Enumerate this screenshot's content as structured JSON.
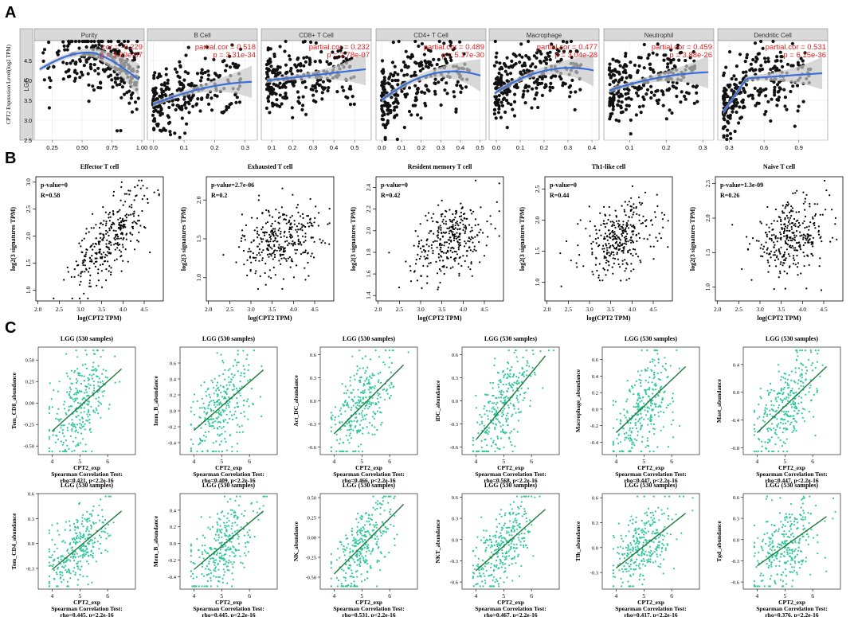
{
  "panels": {
    "a": "A",
    "b": "B",
    "c": "C"
  },
  "panel_a": {
    "ylabel": "CPT2 Expression Level(log2 TPM)",
    "cohort": "LGG",
    "yticks": [
      "2.5",
      "3.0",
      "3.5",
      "4.0",
      "4.5"
    ]
  },
  "panel_b": {
    "ylabel": "log2(3 signatures TPM)",
    "xlabel": "log(CPT2 TPM)"
  },
  "panel_c": {
    "title": "LGG (530 samples)",
    "xlabel": "CPT2_exp",
    "test": "Spearman Correlation Test:"
  },
  "chart_data": [
    {
      "type": "scatter",
      "panel": "A",
      "title": "Purity",
      "annot_label": "cor",
      "annot_value": "-0.229",
      "annot_p": "3.99e-07",
      "xticks": [
        "0.25",
        "0.50",
        "0.75",
        "1.00"
      ],
      "xlim": [
        0.1,
        1.02
      ],
      "ylim": [
        2.5,
        5.0
      ],
      "trend": "curve"
    },
    {
      "type": "scatter",
      "panel": "A",
      "title": "B Cell",
      "annot_label": "partial.cor",
      "annot_value": "0.518",
      "annot_p": "3.31e-34",
      "xticks": [
        "0.0",
        "0.1",
        "0.2",
        "0.3"
      ],
      "xlim": [
        -0.02,
        0.34
      ],
      "ylim": [
        2.5,
        5.0
      ],
      "trend": "curve"
    },
    {
      "type": "scatter",
      "panel": "A",
      "title": "CD8+ T Cell",
      "annot_label": "partial.cor",
      "annot_value": "0.232",
      "annot_p": "2.78e-07",
      "xticks": [
        "0.1",
        "0.2",
        "0.3",
        "0.4",
        "0.5"
      ],
      "xlim": [
        0.05,
        0.58
      ],
      "ylim": [
        2.5,
        5.0
      ],
      "trend": "curve"
    },
    {
      "type": "scatter",
      "panel": "A",
      "title": "CD4+ T Cell",
      "annot_label": "partial.cor",
      "annot_value": "0.489",
      "annot_p": "5.17e-30",
      "xticks": [
        "0.0",
        "0.1",
        "0.2",
        "0.3",
        "0.4",
        "0.5"
      ],
      "xlim": [
        -0.03,
        0.53
      ],
      "ylim": [
        2.5,
        5.0
      ],
      "trend": "curve"
    },
    {
      "type": "scatter",
      "panel": "A",
      "title": "Macrophage",
      "annot_label": "partial.cor",
      "annot_value": "0.477",
      "annot_p": "3.04e-28",
      "xticks": [
        "0.0",
        "0.1",
        "0.2",
        "0.3",
        "0.4"
      ],
      "xlim": [
        -0.03,
        0.43
      ],
      "ylim": [
        2.5,
        5.0
      ],
      "trend": "curve"
    },
    {
      "type": "scatter",
      "panel": "A",
      "title": "Neutrophil",
      "annot_label": "partial.cor",
      "annot_value": "0.459",
      "annot_p": "3.88e-26",
      "xticks": [
        "0.1",
        "0.2",
        "0.3"
      ],
      "xlim": [
        0.03,
        0.33
      ],
      "ylim": [
        2.5,
        5.0
      ],
      "trend": "curve"
    },
    {
      "type": "scatter",
      "panel": "A",
      "title": "Dendritic Cell",
      "annot_label": "partial.cor",
      "annot_value": "0.531",
      "annot_p": "6.15e-36",
      "xticks": [
        "0.3",
        "0.6",
        "0.9"
      ],
      "xlim": [
        0.2,
        1.15
      ],
      "ylim": [
        2.5,
        5.0
      ],
      "trend": "curve"
    },
    {
      "type": "scatter",
      "panel": "B",
      "title": "Effector T cell",
      "pvalue": "p-value=0",
      "r": "R=0.58",
      "xticks": [
        "2.0",
        "2.5",
        "3.0",
        "3.5",
        "4.0",
        "4.5"
      ],
      "yticks": [
        "1.0",
        "1.5",
        "2.0",
        "2.5",
        "3.0"
      ],
      "xlim": [
        1.95,
        4.95
      ],
      "ylim": [
        0.8,
        3.1
      ]
    },
    {
      "type": "scatter",
      "panel": "B",
      "title": "Exhausted  T cell",
      "pvalue": "p-value=2.7e-06",
      "r": "R=0.2",
      "xticks": [
        "2.0",
        "2.5",
        "3.0",
        "3.5",
        "4.0",
        "4.5"
      ],
      "yticks": [
        "1.0",
        "1.5",
        "2.0"
      ],
      "xlim": [
        1.95,
        4.95
      ],
      "ylim": [
        0.7,
        2.3
      ]
    },
    {
      "type": "scatter",
      "panel": "B",
      "title": "Resident memory  T cell",
      "pvalue": "p-value=0",
      "r": "R=0.42",
      "xticks": [
        "2.0",
        "2.5",
        "3.0",
        "3.5",
        "4.0",
        "4.5"
      ],
      "yticks": [
        "1.4",
        "1.6",
        "1.8",
        "2.0",
        "2.2",
        "2.4"
      ],
      "xlim": [
        1.95,
        4.95
      ],
      "ylim": [
        1.35,
        2.5
      ]
    },
    {
      "type": "scatter",
      "panel": "B",
      "title": "Th1-like cell",
      "pvalue": "p-value=0",
      "r": "R=0.44",
      "xticks": [
        "2.0",
        "2.5",
        "3.0",
        "3.5",
        "4.0",
        "4.5"
      ],
      "yticks": [
        "1.0",
        "1.5",
        "2.0",
        "2.5"
      ],
      "xlim": [
        1.95,
        4.95
      ],
      "ylim": [
        0.7,
        2.7
      ]
    },
    {
      "type": "scatter",
      "panel": "B",
      "title": "Naive T cell",
      "pvalue": "p-value=1.3e-09",
      "r": "R=0.26",
      "xticks": [
        "2.0",
        "2.5",
        "3.0",
        "3.5",
        "4.0",
        "4.5"
      ],
      "yticks": [
        "1.0",
        "1.5",
        "2.0",
        "2.5"
      ],
      "xlim": [
        1.95,
        4.95
      ],
      "ylim": [
        0.8,
        2.6
      ]
    },
    {
      "type": "scatter",
      "panel": "C",
      "ylabel": "Tem_CD8_abundance",
      "rho": "rho=0.421, p<2.2e-16",
      "xticks": [
        "4",
        "5",
        "6"
      ],
      "yticks": [
        "-0.50",
        "-0.25",
        "0.00",
        "0.25",
        "0.50"
      ],
      "xlim": [
        3.5,
        7.0
      ],
      "ylim": [
        -0.6,
        0.65
      ]
    },
    {
      "type": "scatter",
      "panel": "C",
      "ylabel": "Imm_B_abundance",
      "rho": "rho=0.409, p<2.2e-16",
      "xticks": [
        "4",
        "5",
        "6"
      ],
      "yticks": [
        "-0.4",
        "-0.2",
        "0.0",
        "0.2",
        "0.4",
        "0.6"
      ],
      "xlim": [
        3.5,
        7.0
      ],
      "ylim": [
        -0.55,
        0.8
      ]
    },
    {
      "type": "scatter",
      "panel": "C",
      "ylabel": "Act_DC_abundance",
      "rho": "rho=0.466, p<2.2e-16",
      "xticks": [
        "4",
        "5",
        "6"
      ],
      "yticks": [
        "-0.6",
        "-0.3",
        "0.0",
        "0.3",
        "0.6"
      ],
      "xlim": [
        3.5,
        7.0
      ],
      "ylim": [
        -0.7,
        0.7
      ]
    },
    {
      "type": "scatter",
      "panel": "C",
      "ylabel": "iDC_abundance",
      "rho": "rho=0.568, p<2.2e-16",
      "xticks": [
        "4",
        "5",
        "6"
      ],
      "yticks": [
        "-0.6",
        "-0.3",
        "0.0",
        "0.3",
        "0.6"
      ],
      "xlim": [
        3.5,
        7.0
      ],
      "ylim": [
        -0.7,
        0.7
      ]
    },
    {
      "type": "scatter",
      "panel": "C",
      "ylabel": "Macrophage_abundance",
      "rho": "rho=0.447, p<2.2e-16",
      "xticks": [
        "4",
        "5",
        "6"
      ],
      "yticks": [
        "-0.4",
        "-0.2",
        "0.0",
        "0.2",
        "0.4",
        "0.6"
      ],
      "xlim": [
        3.5,
        7.0
      ],
      "ylim": [
        -0.55,
        0.75
      ]
    },
    {
      "type": "scatter",
      "panel": "C",
      "ylabel": "Mast_abundance",
      "rho": "rho=0.447, p<2.2e-16",
      "xticks": [
        "4",
        "5",
        "6"
      ],
      "yticks": [
        "-0.8",
        "-0.4",
        "0.0",
        "0.4"
      ],
      "xlim": [
        3.5,
        7.0
      ],
      "ylim": [
        -0.9,
        0.65
      ]
    },
    {
      "type": "scatter",
      "panel": "C",
      "ylabel": "Tem_CD4_abundance",
      "rho": "rho=0.445, p<2.2e-16",
      "xticks": [
        "4",
        "5",
        "6"
      ],
      "yticks": [
        "-0.3",
        "0.0",
        "0.3",
        "0.6"
      ],
      "xlim": [
        3.5,
        7.0
      ],
      "ylim": [
        -0.55,
        0.6
      ]
    },
    {
      "type": "scatter",
      "panel": "C",
      "ylabel": "Mem_B_abundance",
      "rho": "rho=0.445, p<2.2e-16",
      "xticks": [
        "4",
        "5",
        "6"
      ],
      "yticks": [
        "-0.4",
        "-0.2",
        "0.0",
        "0.2",
        "0.4"
      ],
      "xlim": [
        3.5,
        7.0
      ],
      "ylim": [
        -0.55,
        0.6
      ]
    },
    {
      "type": "scatter",
      "panel": "C",
      "ylabel": "NK_abundance",
      "rho": "rho=0.531, p<2.2e-16",
      "xticks": [
        "4",
        "5",
        "6"
      ],
      "yticks": [
        "-0.50",
        "-0.25",
        "0.00",
        "0.25",
        "0.50"
      ],
      "xlim": [
        3.5,
        7.0
      ],
      "ylim": [
        -0.65,
        0.55
      ]
    },
    {
      "type": "scatter",
      "panel": "C",
      "ylabel": "NKT_abundance",
      "rho": "rho=0.467, p<2.2e-16",
      "xticks": [
        "4",
        "5",
        "6"
      ],
      "yticks": [
        "-0.6",
        "-0.3",
        "0.0",
        "0.3",
        "0.6"
      ],
      "xlim": [
        3.5,
        7.0
      ],
      "ylim": [
        -0.7,
        0.65
      ]
    },
    {
      "type": "scatter",
      "panel": "C",
      "ylabel": "Tfh_abundance",
      "rho": "rho=0.417, p<2.2e-16",
      "xticks": [
        "4",
        "5",
        "6"
      ],
      "yticks": [
        "-0.3",
        "0.0",
        "0.3",
        "0.6"
      ],
      "xlim": [
        3.5,
        7.0
      ],
      "ylim": [
        -0.5,
        0.65
      ]
    },
    {
      "type": "scatter",
      "panel": "C",
      "ylabel": "Tgd_abundance",
      "rho": "rho=0.376, p<2.2e-16",
      "xticks": [
        "4",
        "5",
        "6"
      ],
      "yticks": [
        "-0.6",
        "-0.3",
        "0.0",
        "0.3",
        "0.6"
      ],
      "xlim": [
        3.5,
        7.0
      ],
      "ylim": [
        -0.7,
        0.65
      ]
    }
  ],
  "colors": {
    "point_a": "#111111",
    "trend_a": "#3b6fd8",
    "band_a": "#c8c8c8",
    "annot_a": "#e32020",
    "strip_a": "#d9d9d9",
    "point_c": "#2ec89a",
    "line_c": "#1f7a3a"
  }
}
